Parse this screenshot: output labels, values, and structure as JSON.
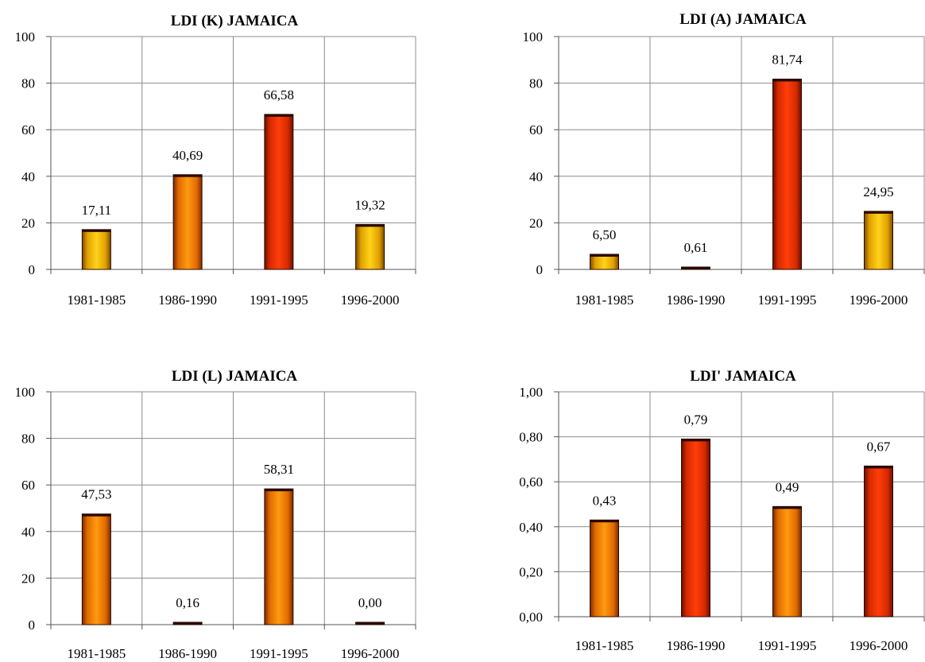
{
  "chart_data": [
    {
      "type": "bar",
      "title": "LDI (K) JAMAICA",
      "categories": [
        "1981-1985",
        "1986-1990",
        "1991-1995",
        "1996-2000"
      ],
      "values": [
        17.11,
        40.69,
        66.58,
        19.32
      ],
      "value_labels": [
        "17,11",
        "40,69",
        "66,58",
        "19,32"
      ],
      "ylim": [
        0,
        100
      ],
      "yticks": [
        0,
        20,
        40,
        60,
        80,
        100
      ],
      "ytick_labels": [
        "0",
        "20",
        "40",
        "60",
        "80",
        "100"
      ],
      "grid": true
    },
    {
      "type": "bar",
      "title": "LDI (A) JAMAICA",
      "categories": [
        "1981-1985",
        "1986-1990",
        "1991-1995",
        "1996-2000"
      ],
      "values": [
        6.5,
        0.61,
        81.74,
        24.95
      ],
      "value_labels": [
        "6,50",
        "0,61",
        "81,74",
        "24,95"
      ],
      "ylim": [
        0,
        100
      ],
      "yticks": [
        0,
        20,
        40,
        60,
        80,
        100
      ],
      "ytick_labels": [
        "0",
        "20",
        "40",
        "60",
        "80",
        "100"
      ],
      "grid": true
    },
    {
      "type": "bar",
      "title": "LDI (L) JAMAICA",
      "categories": [
        "1981-1985",
        "1986-1990",
        "1991-1995",
        "1996-2000"
      ],
      "values": [
        47.53,
        0.16,
        58.31,
        0.0
      ],
      "value_labels": [
        "47,53",
        "0,16",
        "58,31",
        "0,00"
      ],
      "ylim": [
        0,
        100
      ],
      "yticks": [
        0,
        20,
        40,
        60,
        80,
        100
      ],
      "ytick_labels": [
        "0",
        "20",
        "40",
        "60",
        "80",
        "100"
      ],
      "grid": true
    },
    {
      "type": "bar",
      "title": "LDI' JAMAICA",
      "categories": [
        "1981-1985",
        "1986-1990",
        "1991-1995",
        "1996-2000"
      ],
      "values": [
        0.43,
        0.79,
        0.49,
        0.67
      ],
      "value_labels": [
        "0,43",
        "0,79",
        "0,49",
        "0,67"
      ],
      "ylim": [
        0,
        1
      ],
      "yticks": [
        0,
        0.2,
        0.4,
        0.6,
        0.8,
        1.0
      ],
      "ytick_labels": [
        "0,00",
        "0,20",
        "0,40",
        "0,60",
        "0,80",
        "1,00"
      ],
      "grid": true
    }
  ]
}
